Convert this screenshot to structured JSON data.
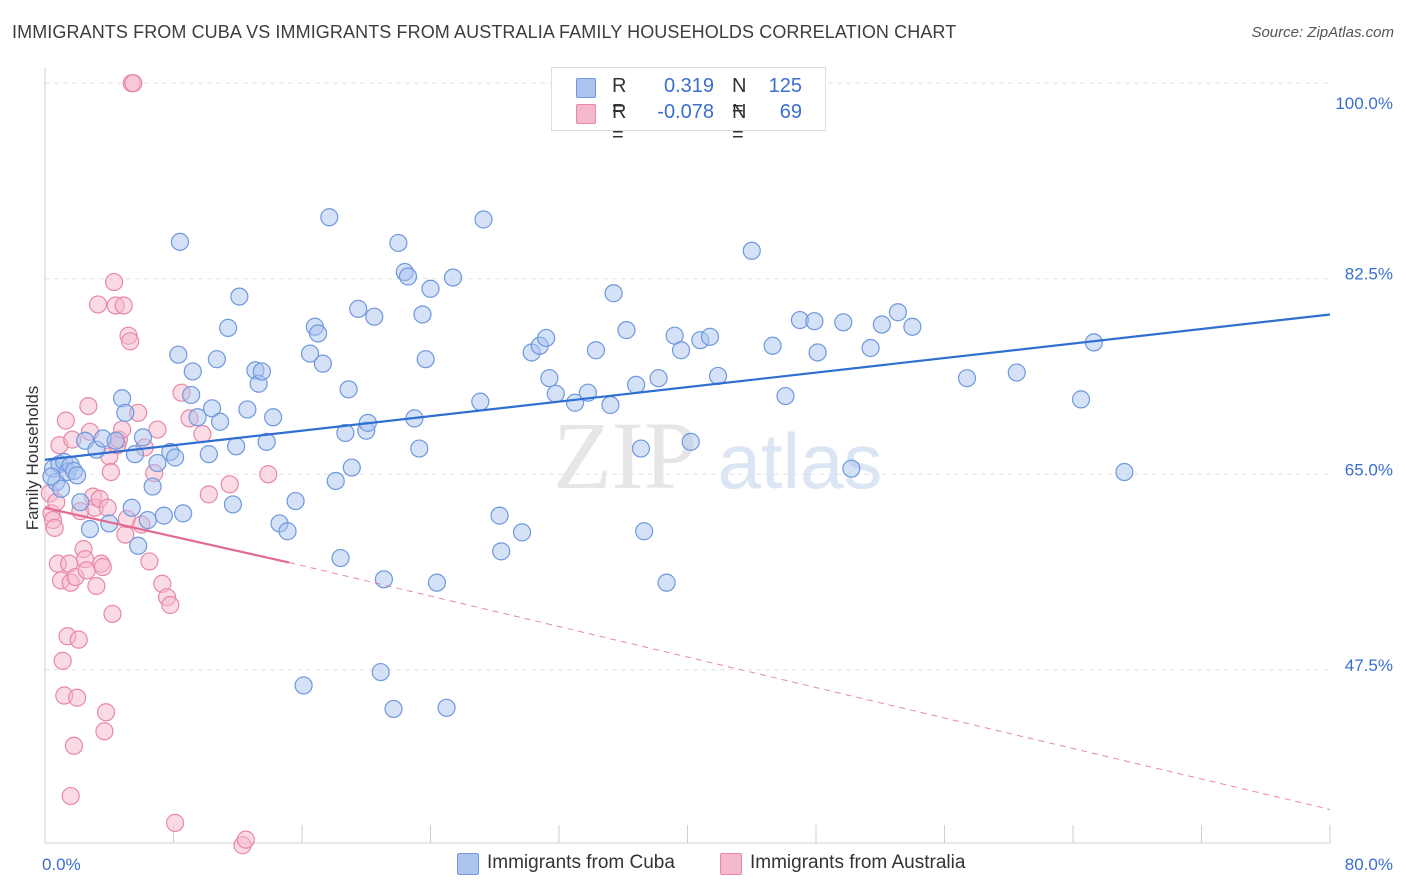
{
  "header": {
    "title": "IMMIGRANTS FROM CUBA VS IMMIGRANTS FROM AUSTRALIA FAMILY HOUSEHOLDS CORRELATION CHART",
    "source": "Source: ZipAtlas.com"
  },
  "watermark": {
    "zip": "ZIP",
    "atlas": "atlas"
  },
  "stats": [
    {
      "r_label": "R =",
      "r_value": "0.319",
      "n_label": "N =",
      "n_value": "125"
    },
    {
      "r_label": "R =",
      "r_value": "-0.078",
      "n_label": "N =",
      "n_value": "69"
    }
  ],
  "legend": {
    "cuba": "Immigrants from Cuba",
    "australia": "Immigrants from Australia"
  },
  "chart_data": {
    "type": "scatter",
    "ylabel": "Family Households",
    "x_tick_labels": [
      "0.0%",
      "80.0%"
    ],
    "y_tick_labels": [
      "100.0%",
      "82.5%",
      "65.0%",
      "47.5%"
    ],
    "xlim": [
      0,
      80
    ],
    "ylim": [
      32,
      101
    ],
    "y_ticks": [
      100,
      82.5,
      65,
      47.5
    ],
    "grid": true,
    "colors": {
      "cuba_fill": "#aac4ef",
      "cuba_stroke": "#6f98dd",
      "cuba_line": "#2f6fd0",
      "aus_fill": "#f5b7cb",
      "aus_stroke": "#e888a6",
      "aus_line": "#e36a92",
      "tick_text": "#3a6fcf",
      "grid": "#e2e2e2"
    },
    "series": [
      {
        "name": "Immigrants from Cuba",
        "trend": {
          "x": [
            0,
            80
          ],
          "y": [
            66.3,
            79.3
          ]
        },
        "points": [
          [
            0.5,
            65.5
          ],
          [
            0.7,
            64.3
          ],
          [
            0.9,
            65.9
          ],
          [
            1.0,
            63.7
          ],
          [
            1.2,
            66.1
          ],
          [
            1.4,
            65.2
          ],
          [
            1.6,
            65.8
          ],
          [
            1.8,
            65.3
          ],
          [
            2.0,
            64.9
          ],
          [
            2.2,
            62.5
          ],
          [
            2.5,
            68.0
          ],
          [
            2.8,
            60.1
          ],
          [
            3.2,
            67.2
          ],
          [
            3.6,
            68.2
          ],
          [
            4.0,
            60.6
          ],
          [
            4.4,
            68.0
          ],
          [
            4.8,
            71.8
          ],
          [
            5.0,
            70.5
          ],
          [
            5.4,
            62.0
          ],
          [
            5.6,
            66.8
          ],
          [
            5.8,
            58.6
          ],
          [
            6.1,
            68.3
          ],
          [
            6.4,
            60.9
          ],
          [
            6.7,
            63.9
          ],
          [
            7.0,
            66.0
          ],
          [
            7.4,
            61.3
          ],
          [
            7.8,
            67.0
          ],
          [
            8.1,
            66.5
          ],
          [
            8.3,
            75.7
          ],
          [
            8.4,
            85.8
          ],
          [
            8.6,
            61.5
          ],
          [
            9.1,
            72.1
          ],
          [
            9.2,
            74.2
          ],
          [
            9.5,
            70.1
          ],
          [
            10.2,
            66.8
          ],
          [
            10.4,
            70.9
          ],
          [
            10.7,
            75.3
          ],
          [
            10.9,
            69.7
          ],
          [
            11.4,
            78.1
          ],
          [
            11.7,
            62.3
          ],
          [
            11.9,
            67.5
          ],
          [
            12.1,
            80.9
          ],
          [
            12.6,
            70.8
          ],
          [
            13.1,
            74.3
          ],
          [
            13.3,
            73.1
          ],
          [
            13.5,
            74.2
          ],
          [
            13.8,
            67.9
          ],
          [
            14.2,
            70.1
          ],
          [
            14.6,
            60.6
          ],
          [
            15.1,
            59.9
          ],
          [
            15.6,
            62.6
          ],
          [
            16.1,
            46.1
          ],
          [
            16.5,
            75.8
          ],
          [
            16.8,
            78.2
          ],
          [
            17.0,
            77.6
          ],
          [
            17.3,
            74.9
          ],
          [
            17.7,
            88.0
          ],
          [
            18.1,
            64.4
          ],
          [
            18.4,
            57.5
          ],
          [
            18.7,
            68.7
          ],
          [
            18.9,
            72.6
          ],
          [
            19.1,
            65.6
          ],
          [
            19.5,
            79.8
          ],
          [
            20.0,
            68.9
          ],
          [
            20.1,
            69.6
          ],
          [
            20.5,
            79.1
          ],
          [
            20.9,
            47.3
          ],
          [
            21.1,
            55.6
          ],
          [
            21.7,
            44.0
          ],
          [
            22.0,
            85.7
          ],
          [
            22.4,
            83.1
          ],
          [
            22.6,
            82.7
          ],
          [
            23.0,
            70.0
          ],
          [
            23.3,
            67.3
          ],
          [
            23.5,
            79.3
          ],
          [
            23.7,
            75.3
          ],
          [
            24.0,
            81.6
          ],
          [
            24.4,
            55.3
          ],
          [
            25.0,
            44.1
          ],
          [
            25.4,
            82.6
          ],
          [
            27.1,
            71.5
          ],
          [
            27.3,
            87.8
          ],
          [
            28.3,
            61.3
          ],
          [
            28.4,
            58.1
          ],
          [
            29.7,
            59.8
          ],
          [
            30.3,
            75.9
          ],
          [
            30.8,
            76.5
          ],
          [
            31.2,
            77.2
          ],
          [
            31.4,
            73.6
          ],
          [
            31.8,
            72.2
          ],
          [
            33.0,
            71.4
          ],
          [
            33.8,
            72.3
          ],
          [
            34.3,
            76.1
          ],
          [
            35.2,
            71.2
          ],
          [
            35.4,
            81.2
          ],
          [
            36.2,
            77.9
          ],
          [
            36.8,
            73.0
          ],
          [
            37.1,
            67.3
          ],
          [
            37.3,
            59.9
          ],
          [
            38.2,
            73.6
          ],
          [
            38.7,
            55.3
          ],
          [
            39.2,
            77.4
          ],
          [
            39.6,
            76.1
          ],
          [
            40.2,
            67.9
          ],
          [
            40.8,
            77.0
          ],
          [
            41.4,
            77.3
          ],
          [
            41.9,
            73.8
          ],
          [
            44.0,
            85.0
          ],
          [
            45.3,
            76.5
          ],
          [
            46.1,
            72.0
          ],
          [
            47.0,
            78.8
          ],
          [
            47.9,
            78.7
          ],
          [
            48.1,
            75.9
          ],
          [
            49.7,
            78.6
          ],
          [
            50.2,
            65.5
          ],
          [
            51.4,
            76.3
          ],
          [
            52.1,
            78.4
          ],
          [
            53.1,
            79.5
          ],
          [
            54.0,
            78.2
          ],
          [
            57.4,
            73.6
          ],
          [
            60.5,
            74.1
          ],
          [
            64.5,
            71.7
          ],
          [
            65.3,
            76.8
          ],
          [
            67.2,
            65.2
          ],
          [
            0.4,
            64.8
          ]
        ]
      },
      {
        "name": "Immigrants from Australia",
        "trend": {
          "x": [
            0,
            15.2
          ],
          "y": [
            62.0,
            57.1
          ]
        },
        "trend_ext": {
          "x": [
            15.2,
            80
          ],
          "y": [
            57.1,
            35.0
          ]
        },
        "points": [
          [
            0.3,
            63.3
          ],
          [
            0.4,
            61.5
          ],
          [
            0.5,
            60.9
          ],
          [
            0.6,
            60.2
          ],
          [
            0.7,
            62.5
          ],
          [
            0.8,
            57.0
          ],
          [
            0.9,
            67.6
          ],
          [
            1.0,
            55.5
          ],
          [
            1.1,
            48.3
          ],
          [
            1.2,
            45.2
          ],
          [
            1.3,
            69.8
          ],
          [
            1.4,
            50.5
          ],
          [
            1.5,
            57.0
          ],
          [
            1.6,
            55.3
          ],
          [
            1.7,
            68.1
          ],
          [
            1.8,
            40.7
          ],
          [
            1.9,
            55.8
          ],
          [
            2.0,
            45.0
          ],
          [
            2.1,
            50.2
          ],
          [
            2.2,
            61.7
          ],
          [
            2.4,
            58.3
          ],
          [
            2.5,
            57.4
          ],
          [
            2.6,
            56.4
          ],
          [
            2.7,
            71.1
          ],
          [
            2.8,
            68.8
          ],
          [
            3.0,
            63.0
          ],
          [
            3.1,
            62.0
          ],
          [
            3.2,
            55.0
          ],
          [
            3.3,
            80.2
          ],
          [
            3.4,
            62.8
          ],
          [
            3.5,
            57.0
          ],
          [
            3.6,
            56.7
          ],
          [
            3.7,
            42.0
          ],
          [
            3.8,
            43.7
          ],
          [
            3.9,
            62.0
          ],
          [
            4.0,
            66.6
          ],
          [
            4.1,
            65.2
          ],
          [
            4.2,
            52.5
          ],
          [
            4.3,
            82.2
          ],
          [
            4.4,
            80.1
          ],
          [
            4.5,
            67.6
          ],
          [
            4.6,
            68.1
          ],
          [
            4.8,
            69.0
          ],
          [
            4.9,
            80.1
          ],
          [
            5.0,
            59.6
          ],
          [
            5.1,
            61.0
          ],
          [
            5.2,
            77.4
          ],
          [
            5.3,
            76.9
          ],
          [
            5.4,
            100.0
          ],
          [
            5.5,
            100.0
          ],
          [
            5.8,
            70.5
          ],
          [
            6.0,
            60.5
          ],
          [
            6.2,
            67.4
          ],
          [
            6.5,
            57.2
          ],
          [
            6.8,
            65.1
          ],
          [
            7.0,
            69.0
          ],
          [
            7.3,
            55.2
          ],
          [
            7.6,
            54.0
          ],
          [
            7.8,
            53.3
          ],
          [
            8.1,
            33.8
          ],
          [
            8.5,
            72.3
          ],
          [
            9.0,
            70.0
          ],
          [
            9.8,
            68.6
          ],
          [
            10.2,
            63.2
          ],
          [
            11.5,
            64.1
          ],
          [
            12.3,
            31.8
          ],
          [
            12.5,
            32.3
          ],
          [
            13.9,
            65.0
          ],
          [
            1.6,
            36.2
          ]
        ]
      }
    ]
  }
}
